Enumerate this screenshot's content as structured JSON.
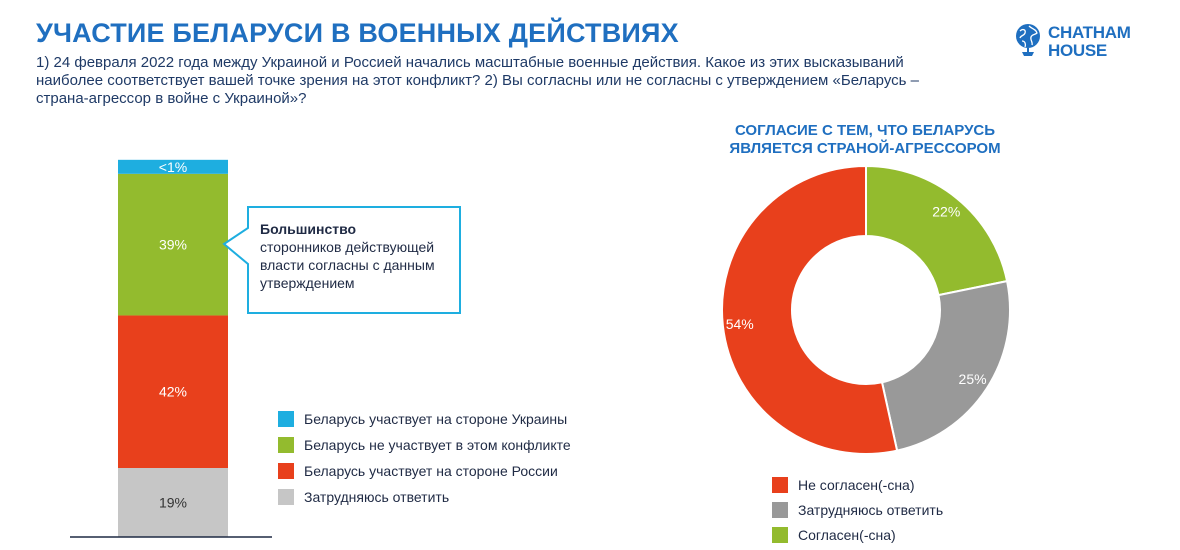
{
  "header": {
    "title": "УЧАСТИЕ БЕЛАРУСИ В ВОЕННЫХ ДЕЙСТВИЯХ",
    "subtitle": "1) 24 февраля 2022 года между Украиной и Россией начались масштабные военные действия. Какое из этих высказываний наиболее соответствует вашей точке зрения на этот конфликт? 2) Вы согласны или не согласны с утверждением «Беларусь – страна-агрессор в войне с Украиной»?",
    "logo_line1": "CHATHAM",
    "logo_line2": "HOUSE"
  },
  "callout": {
    "bold": "Большинство",
    "text": "сторонников действующей власти согласны с данным утверждением"
  },
  "chart_data": [
    {
      "type": "bar",
      "stacked": true,
      "series": [
        {
          "name": "Затрудняюсь ответить",
          "value": 19,
          "label": "19%",
          "color": "#c6c6c6"
        },
        {
          "name": "Беларусь участвует на стороне России",
          "value": 42,
          "label": "42%",
          "color": "#e8401c"
        },
        {
          "name": "Беларусь не участвует в этом конфликте",
          "value": 39,
          "label": "39%",
          "color": "#93bb2e"
        },
        {
          "name": "Беларусь участвует на стороне Украины",
          "value": 0.5,
          "label": "<1%",
          "color": "#1eaee0"
        }
      ],
      "legend": [
        {
          "label": "Беларусь участвует на стороне Украины",
          "color": "#1eaee0"
        },
        {
          "label": "Беларусь не участвует в этом конфликте",
          "color": "#93bb2e"
        },
        {
          "label": "Беларусь участвует на стороне России",
          "color": "#e8401c"
        },
        {
          "label": "Затрудняюсь ответить",
          "color": "#c6c6c6"
        }
      ],
      "legend_position": "right"
    },
    {
      "type": "pie",
      "donut": true,
      "title": "СОГЛАСИЕ С ТЕМ, ЧТО БЕЛАРУСЬ ЯВЛЯЕТСЯ СТРАНОЙ-АГРЕССОРОМ",
      "slices": [
        {
          "name": "Согласен(-сна)",
          "value": 22,
          "label": "22%",
          "color": "#93bb2e"
        },
        {
          "name": "Затрудняюсь ответить",
          "value": 25,
          "label": "25%",
          "color": "#999999"
        },
        {
          "name": "Не согласен(-сна)",
          "value": 54,
          "label": "54%",
          "color": "#e8401c"
        }
      ],
      "legend": [
        {
          "label": "Не согласен(-сна)",
          "color": "#e8401c"
        },
        {
          "label": "Затрудняюсь ответить",
          "color": "#999999"
        },
        {
          "label": "Согласен(-сна)",
          "color": "#93bb2e"
        }
      ],
      "legend_position": "bottom"
    }
  ]
}
